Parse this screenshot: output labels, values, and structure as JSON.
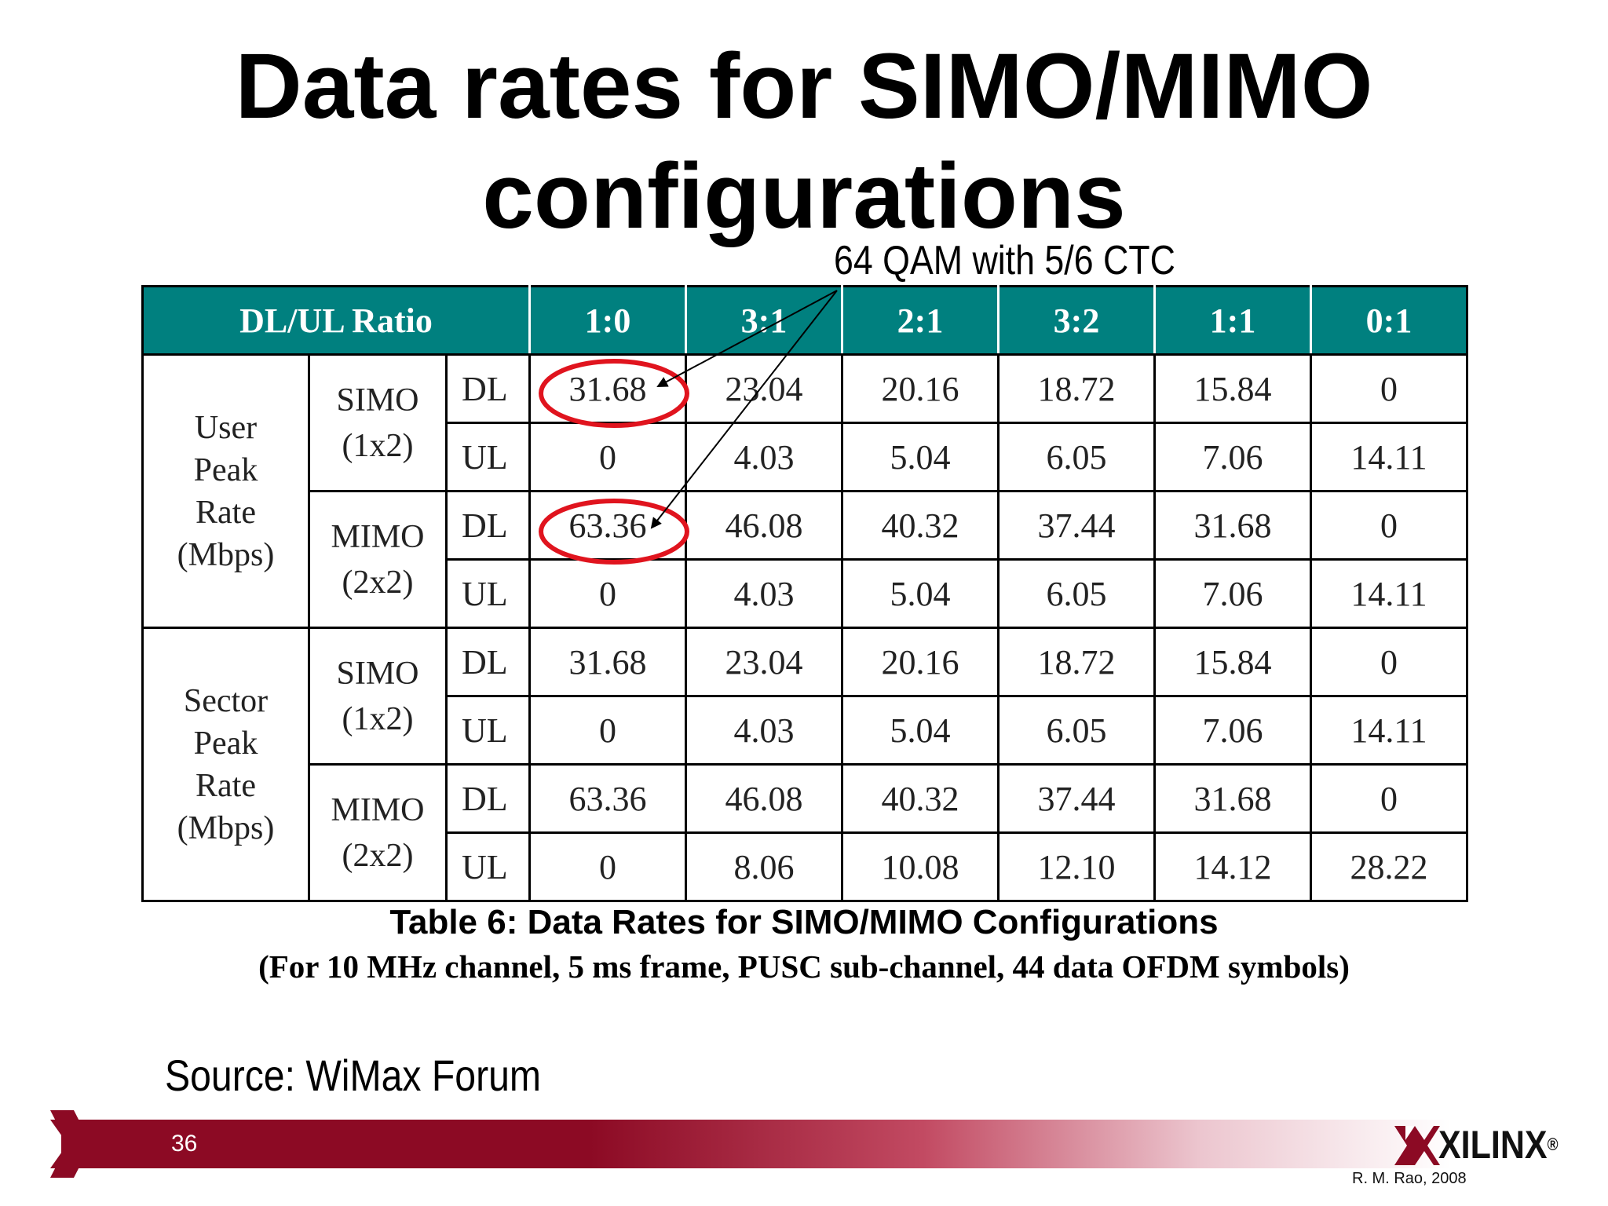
{
  "slide": {
    "title_line1": "Data rates for SIMO/MIMO",
    "title_line2": "configurations",
    "annotation": "64 QAM with 5/6 CTC",
    "source": "Source: WiMax Forum",
    "page_number": "36",
    "logo_text": "XILINX",
    "logo_mark": "®",
    "credit": "R. M. Rao, 2008"
  },
  "table": {
    "header_label": "DL/UL Ratio",
    "ratios": [
      "1:0",
      "3:1",
      "2:1",
      "3:2",
      "1:1",
      "0:1"
    ],
    "groups": [
      {
        "label_lines": [
          "User",
          "Peak",
          "Rate",
          "(Mbps)"
        ],
        "configs": [
          {
            "name_lines": [
              "SIMO",
              "(1x2)"
            ],
            "rows": [
              {
                "dir": "DL",
                "values": [
                  "31.68",
                  "23.04",
                  "20.16",
                  "18.72",
                  "15.84",
                  "0"
                ]
              },
              {
                "dir": "UL",
                "values": [
                  "0",
                  "4.03",
                  "5.04",
                  "6.05",
                  "7.06",
                  "14.11"
                ]
              }
            ]
          },
          {
            "name_lines": [
              "MIMO",
              "(2x2)"
            ],
            "rows": [
              {
                "dir": "DL",
                "values": [
                  "63.36",
                  "46.08",
                  "40.32",
                  "37.44",
                  "31.68",
                  "0"
                ]
              },
              {
                "dir": "UL",
                "values": [
                  "0",
                  "4.03",
                  "5.04",
                  "6.05",
                  "7.06",
                  "14.11"
                ]
              }
            ]
          }
        ]
      },
      {
        "label_lines": [
          "Sector",
          "Peak",
          "Rate",
          "(Mbps)"
        ],
        "configs": [
          {
            "name_lines": [
              "SIMO",
              "(1x2)"
            ],
            "rows": [
              {
                "dir": "DL",
                "values": [
                  "31.68",
                  "23.04",
                  "20.16",
                  "18.72",
                  "15.84",
                  "0"
                ]
              },
              {
                "dir": "UL",
                "values": [
                  "0",
                  "4.03",
                  "5.04",
                  "6.05",
                  "7.06",
                  "14.11"
                ]
              }
            ]
          },
          {
            "name_lines": [
              "MIMO",
              "(2x2)"
            ],
            "rows": [
              {
                "dir": "DL",
                "values": [
                  "63.36",
                  "46.08",
                  "40.32",
                  "37.44",
                  "31.68",
                  "0"
                ]
              },
              {
                "dir": "UL",
                "values": [
                  "0",
                  "8.06",
                  "10.08",
                  "12.10",
                  "14.12",
                  "28.22"
                ]
              }
            ]
          }
        ]
      }
    ],
    "caption_line1": "Table 6: Data Rates for SIMO/MIMO Configurations",
    "caption_line2": "(For 10 MHz channel, 5 ms frame, PUSC sub-channel, 44 data OFDM symbols)"
  },
  "colors": {
    "header_bg": "#00807f",
    "highlight_circle": "#e0141e",
    "bar_dark": "#8c0a24"
  }
}
